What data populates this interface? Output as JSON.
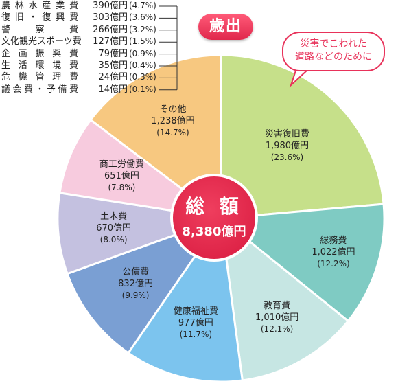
{
  "chart_data": {
    "type": "pie",
    "title": "歳出",
    "callout": "災害でこわれた\n道路などのために",
    "center": {
      "title": "総 額",
      "value": "8,380億円"
    },
    "slices": [
      {
        "name": "災害復旧費",
        "amount": "1,980億円",
        "percent": "(23.6%)",
        "value": 23.6,
        "color": "#c6e08a"
      },
      {
        "name": "総務費",
        "amount": "1,022億円",
        "percent": "(12.2%)",
        "value": 12.2,
        "color": "#7fcbc3"
      },
      {
        "name": "教育費",
        "amount": "1,010億円",
        "percent": "(12.1%)",
        "value": 12.1,
        "color": "#c6e6e3"
      },
      {
        "name": "健康福祉費",
        "amount": "977億円",
        "percent": "(11.7%)",
        "value": 11.7,
        "color": "#7cc4ee"
      },
      {
        "name": "公債費",
        "amount": "832億円",
        "percent": "(9.9%)",
        "value": 9.9,
        "color": "#7a9fd3"
      },
      {
        "name": "土木費",
        "amount": "670億円",
        "percent": "(8.0%)",
        "value": 8.0,
        "color": "#c4c1e0"
      },
      {
        "name": "商工労働費",
        "amount": "651億円",
        "percent": "(7.8%)",
        "value": 7.8,
        "color": "#f7cbde"
      },
      {
        "name": "その他",
        "amount": "1,238億円",
        "percent": "(14.7%)",
        "value": 14.7,
        "color": "#f7c880"
      }
    ],
    "other_breakdown": [
      {
        "name": "農林水産業費",
        "amount": "390億円",
        "percent": "(4.7%)"
      },
      {
        "name": "復旧・復興費",
        "amount": "303億円",
        "percent": "(3.6%)"
      },
      {
        "name": "警察費",
        "amount": "266億円",
        "percent": "(3.2%)"
      },
      {
        "name": "文化観光スポーツ費",
        "amount": "127億円",
        "percent": "(1.5%)"
      },
      {
        "name": "企画振興費",
        "amount": "79億円",
        "percent": "(0.9%)"
      },
      {
        "name": "生活環境費",
        "amount": "35億円",
        "percent": "(0.4%)"
      },
      {
        "name": "危機管理費",
        "amount": "24億円",
        "percent": "(0.3%)"
      },
      {
        "name": "議会費・予備費",
        "amount": "14億円",
        "percent": "(0.1%)"
      }
    ]
  }
}
